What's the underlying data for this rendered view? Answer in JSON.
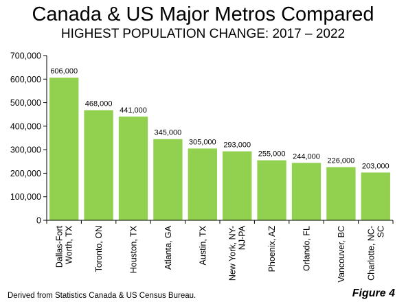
{
  "title": "Canada & US Major Metros Compared",
  "subtitle": "HIGHEST POPULATION CHANGE: 2017 – 2022",
  "source": "Derived from Statistics Canada & US Census Bureau.",
  "figure_label": "Figure 4",
  "chart_data": {
    "type": "bar",
    "title": "Canada & US Major Metros Compared",
    "subtitle": "HIGHEST POPULATION CHANGE: 2017 – 2022",
    "categories": [
      [
        "Dallas-Fort",
        "Worth, TX"
      ],
      [
        "Toronto, ON"
      ],
      [
        "Houston, TX"
      ],
      [
        "Atlanta, GA"
      ],
      [
        "Austin, TX"
      ],
      [
        "New York, NY-",
        "NJ-PA"
      ],
      [
        "Phoenix, AZ"
      ],
      [
        "Orlando, FL"
      ],
      [
        "Vancouver, BC"
      ],
      [
        "Charlotte, NC-",
        "SC"
      ]
    ],
    "values": [
      606000,
      468000,
      441000,
      345000,
      305000,
      293000,
      255000,
      244000,
      226000,
      203000
    ],
    "data_labels": [
      "606,000",
      "468,000",
      "441,000",
      "345,000",
      "305,000",
      "293,000",
      "255,000",
      "244,000",
      "226,000",
      "203,000"
    ],
    "y_ticks": [
      0,
      100000,
      200000,
      300000,
      400000,
      500000,
      600000,
      700000
    ],
    "y_tick_labels": [
      "0",
      "100,000",
      "200,000",
      "300,000",
      "400,000",
      "500,000",
      "600,000",
      "700,000"
    ],
    "ylim": [
      0,
      700000
    ],
    "xlabel": "",
    "ylabel": "",
    "grid": false,
    "bar_color": "#92d050"
  }
}
